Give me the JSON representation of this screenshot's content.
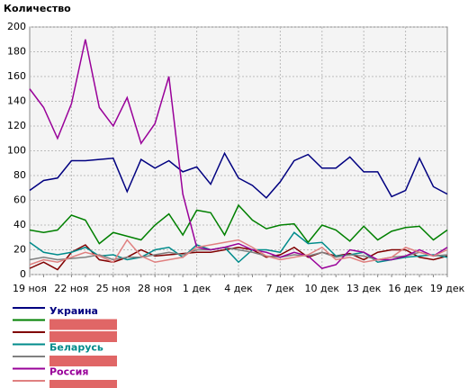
{
  "chart_data": {
    "type": "line",
    "ylabel": "Количество",
    "categories": [
      "19 ноя",
      null,
      null,
      "22 ноя",
      null,
      null,
      "25 ноя",
      null,
      null,
      "28 ноя",
      null,
      null,
      "1 дек",
      null,
      null,
      "4 дек",
      null,
      null,
      "7 дек",
      null,
      null,
      "10 дек",
      null,
      null,
      "13 дек",
      null,
      null,
      "16 дек",
      null,
      null,
      "19 дек"
    ],
    "ylim": [
      0,
      200
    ],
    "yticks": [
      0,
      20,
      40,
      60,
      80,
      100,
      120,
      140,
      160,
      180,
      200
    ],
    "grid": true,
    "series": [
      {
        "name": "Украина",
        "color": "#000080",
        "values": [
          68,
          76,
          78,
          92,
          92,
          93,
          94,
          67,
          93,
          86,
          92,
          83,
          87,
          73,
          98,
          78,
          72,
          62,
          75,
          92,
          97,
          86,
          86,
          95,
          83,
          83,
          63,
          68,
          94,
          71,
          65
        ]
      },
      {
        "color": "#008000",
        "values": [
          36,
          34,
          36,
          48,
          44,
          25,
          34,
          31,
          28,
          40,
          49,
          32,
          52,
          50,
          32,
          56,
          44,
          37,
          40,
          41,
          26,
          40,
          36,
          27,
          39,
          28,
          35,
          38,
          39,
          28,
          36
        ]
      },
      {
        "color": "#800000",
        "values": [
          5,
          10,
          4,
          18,
          24,
          12,
          10,
          14,
          20,
          15,
          16,
          17,
          18,
          18,
          20,
          22,
          20,
          14,
          16,
          22,
          14,
          18,
          15,
          17,
          12,
          18,
          20,
          20,
          14,
          12,
          15
        ]
      },
      {
        "name": "Беларусь",
        "color": "#008b8b",
        "values": [
          26,
          18,
          16,
          18,
          22,
          15,
          16,
          12,
          14,
          20,
          22,
          14,
          24,
          20,
          22,
          10,
          20,
          20,
          18,
          34,
          25,
          26,
          15,
          16,
          18,
          10,
          12,
          14,
          15,
          16,
          14
        ]
      },
      {
        "color": "#808080",
        "values": [
          12,
          14,
          12,
          13,
          14,
          16,
          12,
          14,
          14,
          16,
          18,
          16,
          20,
          20,
          22,
          20,
          18,
          15,
          14,
          16,
          15,
          18,
          14,
          16,
          15,
          12,
          14,
          15,
          18,
          15,
          16
        ]
      },
      {
        "name": "Россия",
        "color": "#990099",
        "values": [
          150,
          135,
          110,
          138,
          190,
          135,
          120,
          143,
          106,
          122,
          160,
          65,
          22,
          20,
          22,
          25,
          20,
          18,
          14,
          18,
          15,
          5,
          8,
          20,
          18,
          12,
          12,
          15,
          20,
          15,
          22
        ]
      },
      {
        "color": "#e08080",
        "values": [
          8,
          12,
          10,
          14,
          18,
          15,
          10,
          28,
          15,
          10,
          12,
          14,
          22,
          24,
          26,
          28,
          22,
          15,
          12,
          14,
          16,
          22,
          12,
          14,
          10,
          12,
          14,
          22,
          18,
          15,
          20
        ]
      }
    ]
  }
}
